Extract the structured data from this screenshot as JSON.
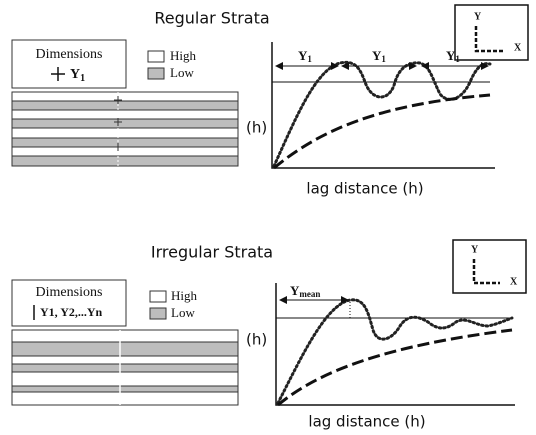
{
  "regular": {
    "title": "Regular Strata",
    "dimensions_label": "Dimensions",
    "dimension_symbol": {
      "letter": "Y",
      "sub": "1"
    },
    "legend": {
      "high": "High",
      "low": "Low"
    },
    "y_label": "(h)",
    "range_labels": [
      {
        "letter": "Y",
        "sub": "1"
      },
      {
        "letter": "Y",
        "sub": "1"
      },
      {
        "letter": "Y",
        "sub": "1"
      }
    ],
    "x_label": "lag distance (h)",
    "axis_icon": {
      "y": "Y",
      "x": "X"
    }
  },
  "irregular": {
    "title": "Irregular Strata",
    "dimensions_label": "Dimensions",
    "dimension_symbols": "Y1, Y2,...Yn",
    "legend": {
      "high": "High",
      "low": "Low"
    },
    "y_label": "(h)",
    "range_label": {
      "letter": "Y",
      "sub": "mean"
    },
    "x_label": "lag distance (h)",
    "axis_icon": {
      "y": "Y",
      "x": "X"
    }
  }
}
